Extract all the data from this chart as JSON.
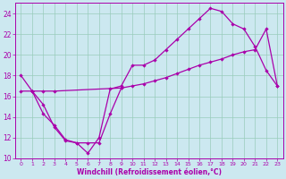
{
  "xlabel": "Windchill (Refroidissement éolien,°C)",
  "bg_color": "#cce8f0",
  "line_color": "#aa00aa",
  "grid_color": "#99ccbb",
  "ylim": [
    10,
    25
  ],
  "xlim": [
    -0.5,
    23.5
  ],
  "yticks": [
    10,
    12,
    14,
    16,
    18,
    20,
    22,
    24
  ],
  "xticks": [
    0,
    1,
    2,
    3,
    4,
    5,
    6,
    7,
    8,
    9,
    10,
    11,
    12,
    13,
    14,
    15,
    16,
    17,
    18,
    19,
    20,
    21,
    22,
    23
  ],
  "line1_x": [
    0,
    1,
    2,
    3,
    4,
    5,
    6,
    7,
    8,
    9,
    10,
    11,
    12,
    13,
    14,
    15,
    16,
    17,
    18,
    19,
    20,
    21,
    22,
    23
  ],
  "line1_y": [
    18.0,
    16.5,
    15.2,
    13.0,
    11.7,
    11.5,
    10.5,
    12.0,
    16.7,
    17.0,
    19.0,
    19.0,
    19.5,
    20.5,
    21.5,
    22.5,
    23.5,
    24.5,
    24.2,
    23.0,
    22.5,
    20.8,
    18.5,
    17.0
  ],
  "line2_x": [
    0,
    1,
    2,
    3,
    9,
    10,
    11,
    12,
    13,
    14,
    15,
    16,
    17,
    18,
    19,
    20,
    21,
    22,
    23
  ],
  "line2_y": [
    16.5,
    16.5,
    16.5,
    16.5,
    16.8,
    17.0,
    17.2,
    17.5,
    17.8,
    18.2,
    18.6,
    19.0,
    19.3,
    19.6,
    20.0,
    20.3,
    20.5,
    22.5,
    17.0
  ],
  "line3_x": [
    1,
    2,
    3,
    4,
    5,
    6,
    7,
    8,
    9
  ],
  "line3_y": [
    16.5,
    14.3,
    13.2,
    11.8,
    11.5,
    11.5,
    11.5,
    14.3,
    16.8
  ]
}
